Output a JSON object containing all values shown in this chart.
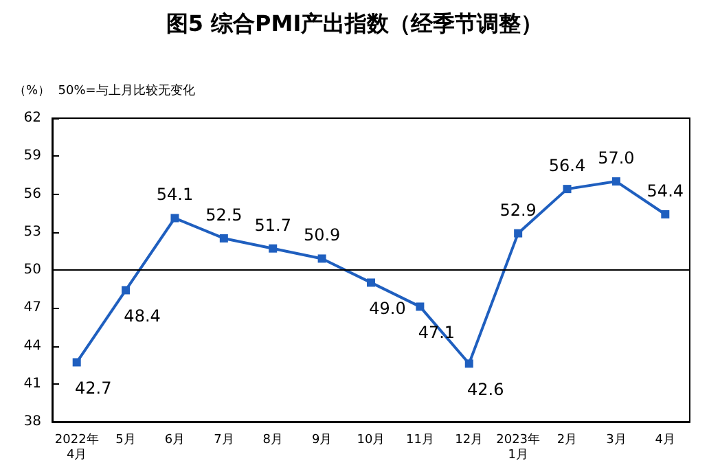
{
  "chart_data": {
    "type": "line",
    "title": "图5 综合PMI产出指数（经季节调整）",
    "annotations": [
      "（%）  50%=与上月比较无变化"
    ],
    "categories": [
      "2022年\n4月",
      "5月",
      "6月",
      "7月",
      "8月",
      "9月",
      "10月",
      "11月",
      "12月",
      "2023年\n1月",
      "2月",
      "3月",
      "4月"
    ],
    "series": [
      {
        "color": "#1f5fbf",
        "values": [
          42.7,
          48.4,
          54.1,
          52.5,
          51.7,
          50.9,
          49.0,
          47.1,
          42.6,
          52.9,
          56.4,
          57.0,
          54.4
        ],
        "value_labels": [
          "42.7",
          "48.4",
          "54.1",
          "52.5",
          "51.7",
          "50.9",
          "49.0",
          "47.1",
          "42.6",
          "52.9",
          "56.4",
          "57.0",
          "54.4"
        ]
      }
    ],
    "ylim": [
      38,
      62
    ],
    "yticks": [
      38,
      41,
      44,
      47,
      50,
      53,
      56,
      59,
      62
    ],
    "ref_lines": [
      {
        "axis": "y",
        "value": 50,
        "color": "#000000"
      }
    ],
    "grid": false,
    "marker": "square",
    "line_style": "solid"
  }
}
